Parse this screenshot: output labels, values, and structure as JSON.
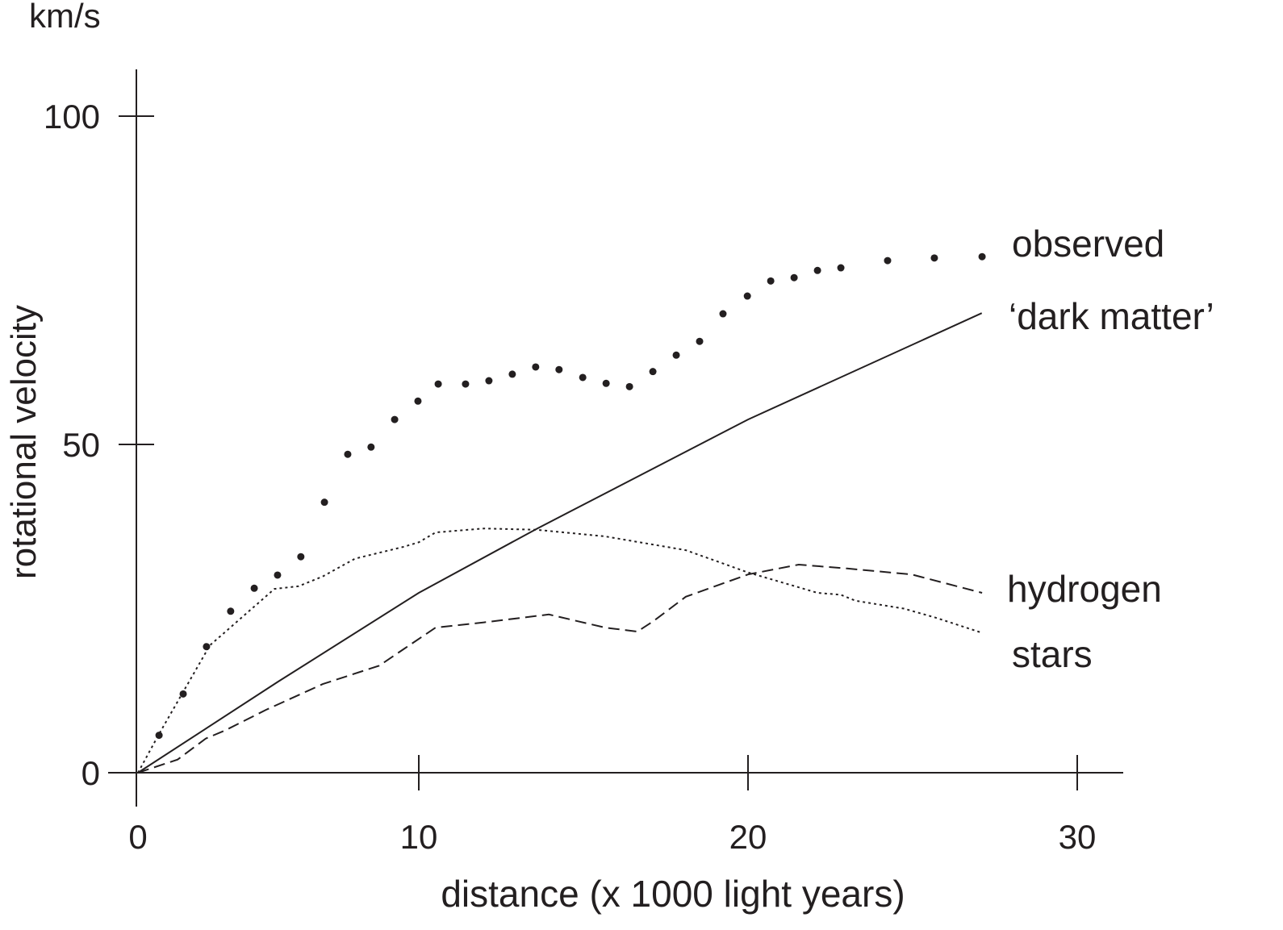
{
  "chart_data": {
    "type": "line",
    "title": "",
    "unit_label": "km/s",
    "xlabel": "distance (x 1000 light years)",
    "ylabel": "rotational velocity",
    "xlim": [
      0,
      31
    ],
    "ylim": [
      0,
      105
    ],
    "x_ticks": [
      0,
      10,
      20,
      30
    ],
    "x_tick_labels": [
      "0",
      "10",
      "20",
      "30"
    ],
    "y_ticks": [
      0,
      50,
      100
    ],
    "y_tick_labels": [
      "0",
      "50",
      "100"
    ],
    "grid": false,
    "series": [
      {
        "name": "observed",
        "label": "observed",
        "style": "dots",
        "x": [
          0.75,
          1.61,
          2.44,
          3.3,
          4.14,
          4.97,
          5.8,
          6.64,
          7.47,
          8.3,
          9.14,
          9.97,
          10.59,
          11.42,
          12.13,
          12.84,
          13.55,
          14.26,
          14.98,
          15.69,
          16.4,
          17.11,
          17.82,
          18.53,
          19.24,
          19.98,
          20.69,
          21.4,
          22.11,
          22.82,
          24.24,
          25.66,
          27.11
        ],
        "y": [
          5.7,
          12.0,
          19.2,
          24.6,
          28.1,
          30.1,
          32.9,
          41.2,
          48.5,
          49.6,
          53.8,
          56.6,
          59.2,
          59.2,
          59.7,
          60.7,
          61.8,
          61.4,
          60.2,
          59.3,
          58.8,
          61.1,
          63.6,
          65.7,
          69.9,
          72.6,
          74.9,
          75.4,
          76.5,
          76.9,
          78.0,
          78.4,
          78.6
        ]
      },
      {
        "name": "dark matter",
        "label": "‘dark matter’",
        "style": "solid",
        "x": [
          0,
          5,
          10,
          13.6,
          20,
          27.1
        ],
        "y": [
          0,
          13.9,
          27.4,
          37.2,
          53.8,
          70.0
        ]
      },
      {
        "name": "hydrogen",
        "label": "hydrogen",
        "style": "dashed",
        "x": [
          0,
          1.41,
          2.41,
          3.13,
          4.57,
          6.58,
          8.59,
          9.45,
          10.51,
          11.98,
          13.95,
          15.66,
          16.64,
          17.13,
          18.11,
          20,
          21.54,
          23.01,
          24.97,
          27.11
        ],
        "y": [
          0,
          2.0,
          5.2,
          6.5,
          9.6,
          13.5,
          16.3,
          18.8,
          22.1,
          22.9,
          24.1,
          22.1,
          21.5,
          23.1,
          26.8,
          30.2,
          31.7,
          31.1,
          30.2,
          27.4
        ]
      },
      {
        "name": "stars",
        "label": "stars",
        "style": "dotted",
        "x": [
          0,
          0.75,
          2.56,
          4.86,
          5.72,
          6.58,
          7.73,
          9.45,
          10,
          10.51,
          11.98,
          13.58,
          15.66,
          18.11,
          20,
          22.11,
          22.82,
          23.26,
          24.73,
          25.71,
          27.11
        ],
        "y": [
          0,
          5.9,
          19.4,
          28.0,
          28.4,
          29.9,
          32.6,
          34.4,
          35.1,
          36.6,
          37.2,
          37.0,
          36.0,
          33.9,
          30.5,
          27.4,
          27.1,
          26.2,
          25.0,
          23.6,
          21.3
        ]
      }
    ]
  }
}
